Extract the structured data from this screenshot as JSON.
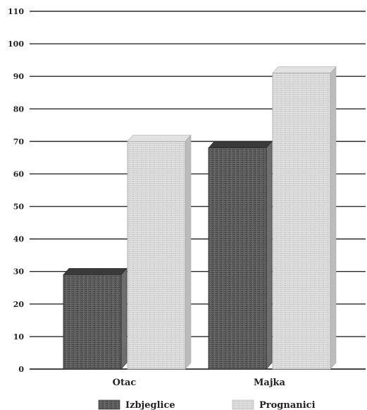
{
  "chart_data": {
    "type": "bar",
    "title": "",
    "xlabel": "",
    "ylabel": "",
    "categories": [
      "Otac",
      "Majka"
    ],
    "series": [
      {
        "name": "Izbjeglice",
        "values": [
          29,
          68
        ],
        "color": "#5a5a5a"
      },
      {
        "name": "Prognanici",
        "values": [
          70,
          91
        ],
        "color": "#d4d4d4"
      }
    ],
    "ylim": [
      0,
      110
    ],
    "yticks": [
      "0",
      "10",
      "20",
      "30",
      "40",
      "50",
      "60",
      "70",
      "80",
      "90",
      "100",
      "110"
    ],
    "grid": true,
    "legend_position": "bottom",
    "style": "3d"
  }
}
